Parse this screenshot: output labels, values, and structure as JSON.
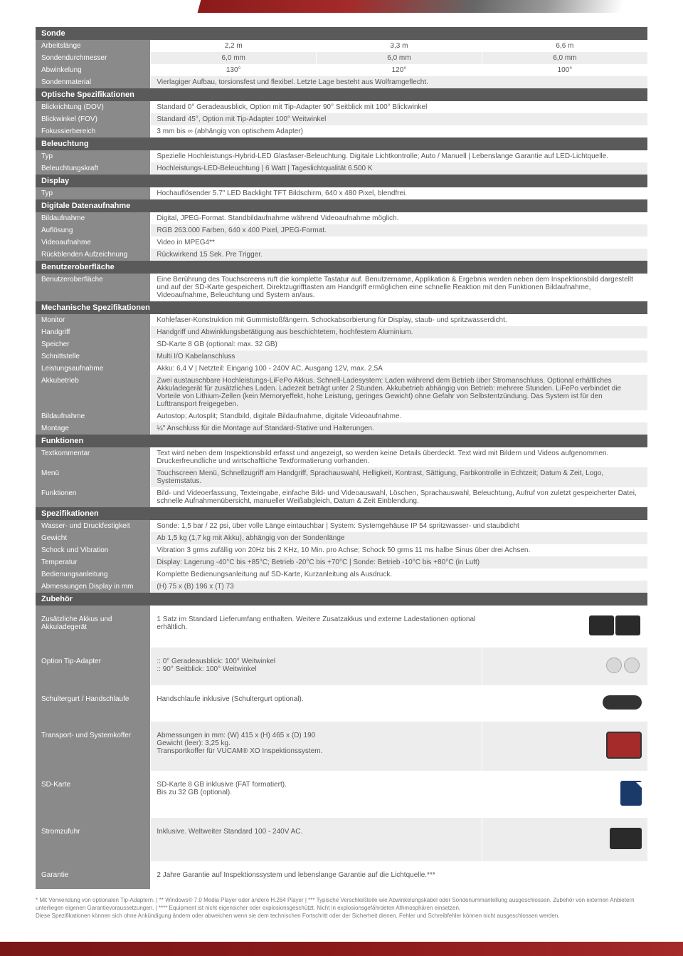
{
  "sections": {
    "sonde": {
      "title": "Sonde",
      "rows": [
        {
          "label": "Arbeitslänge",
          "c1": "2,2 m",
          "c2": "3,3 m",
          "c3": "6,6 m"
        },
        {
          "label": "Sondendurchmesser",
          "c1": "6,0 mm",
          "c2": "6,0 mm",
          "c3": "6,0 mm"
        },
        {
          "label": "Abwinkelung",
          "c1": "130°",
          "c2": "120°",
          "c3": "100°"
        },
        {
          "label": "Sondenmaterial",
          "span": "Vierlagiger Aufbau, torsionsfest und flexibel. Letzte Lage besteht aus Wolframgeflecht."
        }
      ]
    },
    "optische": {
      "title": "Optische Spezifikationen",
      "rows": [
        {
          "label": "Blickrichtung (DOV)",
          "span": "Standard  0° Geradeausblick, Option mit Tip-Adapter 90° Seitblick mit 100° Blickwinkel"
        },
        {
          "label": "Blickwinkel (FOV)",
          "span": "Standard 45°, Option mit Tip-Adapter 100° Weitwinkel"
        },
        {
          "label": "Fokussierbereich",
          "span": "3 mm bis ∞ (abhängig von optischem Adapter)"
        }
      ]
    },
    "beleuchtung": {
      "title": "Beleuchtung",
      "rows": [
        {
          "label": "Typ",
          "span": "Spezielle Hochleistungs-Hybrid-LED Glasfaser-Beleuchtung. Digitale Lichtkontrolle; Auto / Manuell | Lebenslange Garantie auf LED-Lichtquelle."
        },
        {
          "label": "Beleuchtungskraft",
          "span": "Hochleistungs-LED-Beleuchtung | 6 Watt | Tageslichtqualität 6.500 K"
        }
      ]
    },
    "display": {
      "title": "Display",
      "rows": [
        {
          "label": "Typ",
          "span": "Hochauflösender 5.7\" LED Backlight TFT Bildschirm, 640 x 480 Pixel, blendfrei."
        }
      ]
    },
    "digitale": {
      "title": "Digitale Datenaufnahme",
      "rows": [
        {
          "label": "Bildaufnahme",
          "span": "Digital, JPEG-Format. Standbildaufnahme während Videoaufnahme möglich."
        },
        {
          "label": "Auflösung",
          "span": "RGB 263.000 Farben, 640 x 400 Pixel, JPEG-Format."
        },
        {
          "label": "Videoaufnahme",
          "span": "Video in MPEG4**"
        },
        {
          "label": "Rückblenden Aufzeichnung",
          "span": "Rückwirkend 15 Sek. Pre Trigger."
        }
      ]
    },
    "benutzer": {
      "title": "Benutzeroberfläche",
      "rows": [
        {
          "label": "Benutzeroberfläche",
          "span": "Eine Berührung des Touchscreens ruft die komplette Tastatur auf. Benutzername, Applikation & Ergebnis werden neben dem Inspektionsbild dargestellt und auf der SD-Karte gespeichert. Direktzugrifftasten am Handgriff ermöglichen eine schnelle Reaktion mit den Funktionen Bildaufnahme, Videoaufnahme, Beleuchtung und System an/aus."
        }
      ]
    },
    "mechanische": {
      "title": "Mechanische Spezifikationen",
      "rows": [
        {
          "label": "Monitor",
          "span": "Kohlefaser-Konstruktion mit Gummistoßfängern. Schockabsorbierung für Display, staub- und spritzwasserdicht."
        },
        {
          "label": "Handgriff",
          "span": "Handgriff und Abwinklungsbetätigung aus beschichtetem, hochfestem Aluminium."
        },
        {
          "label": "Speicher",
          "span": "SD-Karte 8 GB (optional: max. 32 GB)"
        },
        {
          "label": "Schnittstelle",
          "span": "Multi I/O Kabelanschluss"
        },
        {
          "label": "Leistungsaufnahme",
          "span": "Akku: 6,4 V | Netzteil: Eingang 100 - 240V AC, Ausgang 12V, max. 2,5A"
        },
        {
          "label": "Akkubetrieb",
          "span": "Zwei austauschbare Hochleistungs-LiFePo Akkus. Schnell-Ladesystem: Laden während dem Betrieb über Stromanschluss. Optional erhältliches Akkuladegerät für zusätzliches Laden. Ladezeit beträgt unter 2 Stunden. Akkubetrieb abhängig von Betrieb: mehrere Stunden. LiFePo verbindet die Vorteile von Lithium-Zellen (kein Memoryeffekt, hohe Leistung, geringes Gewicht) ohne Gefahr von Selbstentzündung. Das System ist für den Lufttransport freigegeben."
        },
        {
          "label": "Bildaufnahme",
          "span": "Autostop; Autosplit; Standbild, digitale Bildaufnahme, digitale Videoaufnahme."
        },
        {
          "label": "Montage",
          "span": "¼\" Anschluss für die Montage auf Standard-Stative und Halterungen."
        }
      ]
    },
    "funktionen": {
      "title": "Funktionen",
      "rows": [
        {
          "label": "Textkommentar",
          "span": "Text wird neben dem Inspektionsbild erfasst und angezeigt, so werden keine Details überdeckt. Text wird mit Bildern und Videos aufgenommen. Druckerfreundliche und wirtschaftliche Textformatierung vorhanden."
        },
        {
          "label": "Menü",
          "span": "Touchscreen Menü, Schnellzugriff am Handgriff, Sprachauswahl, Helligkeit, Kontrast, Sättigung, Farbkontrolle in Echtzeit; Datum & Zeit, Logo, Systemstatus."
        },
        {
          "label": "Funktionen",
          "span": "Bild- und Videoerfassung, Texteingabe, einfache Bild- und Videoauswahl, Löschen, Sprachauswahl, Beleuchtung, Aufruf von zuletzt gespeicherter Datei, schnelle Aufnahmenübersicht, manueller Weißabgleich, Datum & Zeit Einblendung."
        }
      ]
    },
    "spezifikationen": {
      "title": "Spezifikationen",
      "rows": [
        {
          "label": "Wasser- und Druckfestigkeit",
          "span": "Sonde: 1,5 bar / 22 psi, über volle Länge eintauchbar | System: Systemgehäuse IP 54 spritzwasser- und staubdicht"
        },
        {
          "label": "Gewicht",
          "span": "Ab 1,5 kg  (1,7 kg mit Akku), abhängig von der Sondenlänge"
        },
        {
          "label": "Schock und Vibration",
          "span": "Vibration 3 grms zufällig von 20Hz bis 2 KHz, 10 Min. pro Achse; Schock 50 grms 11 ms halbe Sinus über drei Achsen."
        },
        {
          "label": "Temperatur",
          "span": "Display: Lagerung -40°C bis +85°C; Betrieb -20°C bis +70°C | Sonde: Betrieb -10°C bis +80°C (in Luft)"
        },
        {
          "label": "Bedienungsanleitung",
          "span": "Komplette Bedienungsanleitung auf SD-Karte, Kurzanleitung als Ausdruck."
        },
        {
          "label": "Abmessungen Display in mm",
          "span": "(H) 75 x (B) 196 x (T) 73"
        }
      ]
    },
    "zubehor": {
      "title": "Zubehör",
      "rows": [
        {
          "label": "Zusätzliche Akkus und Akkuladegerät",
          "span": "1 Satz im Standard Lieferumfang enthalten. Weitere Zusatzakkus und externe Ladestationen optional erhältlich.",
          "img": "battery"
        },
        {
          "label": "Option Tip-Adapter",
          "span": ":: 0° Geradeausblick: 100° Weitwinkel\n:: 90° Seitblick: 100° Weitwinkel",
          "img": "adapter"
        },
        {
          "label": "Schultergurt / Handschlaufe",
          "span": "Handschlaufe inklusive (Schultergurt optional).",
          "img": "strap"
        },
        {
          "label": "Transport- und Systemkoffer",
          "span": "Abmessungen in mm: (W) 415 x (H) 465 x (D) 190\nGewicht (leer): 3,25 kg.\nTransportkoffer für VUCAM® XO Inspektionssystem.",
          "img": "case"
        },
        {
          "label": "SD-Karte",
          "span": "SD-Karte 8 GB inklusive (FAT formatiert).\nBis zu 32 GB (optional).",
          "img": "sdcard"
        },
        {
          "label": "Stromzufuhr",
          "span": "Inklusive. Weltweiter Standard 100 - 240V AC.",
          "img": "plug"
        },
        {
          "label": "Garantie",
          "span": "2 Jahre Garantie auf Inspektionssystem und lebenslange Garantie auf die Lichtquelle.***",
          "img": ""
        }
      ]
    }
  },
  "footnotes": "*   Mit Verwendung von optionalen Tip-Adaptern.   |   **  Windows® 7.0 Media Player oder andere H.264 Player   |   ***  Typische Verschleißteile wie Abwinkelungskabel oder Sondenummantellung ausgeschlossen. Zubehör von externen Anbietern unterliegen eigenen Garantievoraussetzungen.   |   ****  Equipment ist nicht eigensicher oder explosionsgeschützt. Nicht in explosionsgefährdeten Athmosphären einsetzen.\nDiese Spezifikationen können sich ohne Ankündigung ändern oder abweichen wenn sie dem technischen Fortschritt oder der Sicherheit dienen. Fehler und Schreibfehler können nicht ausgeschlossen werden."
}
